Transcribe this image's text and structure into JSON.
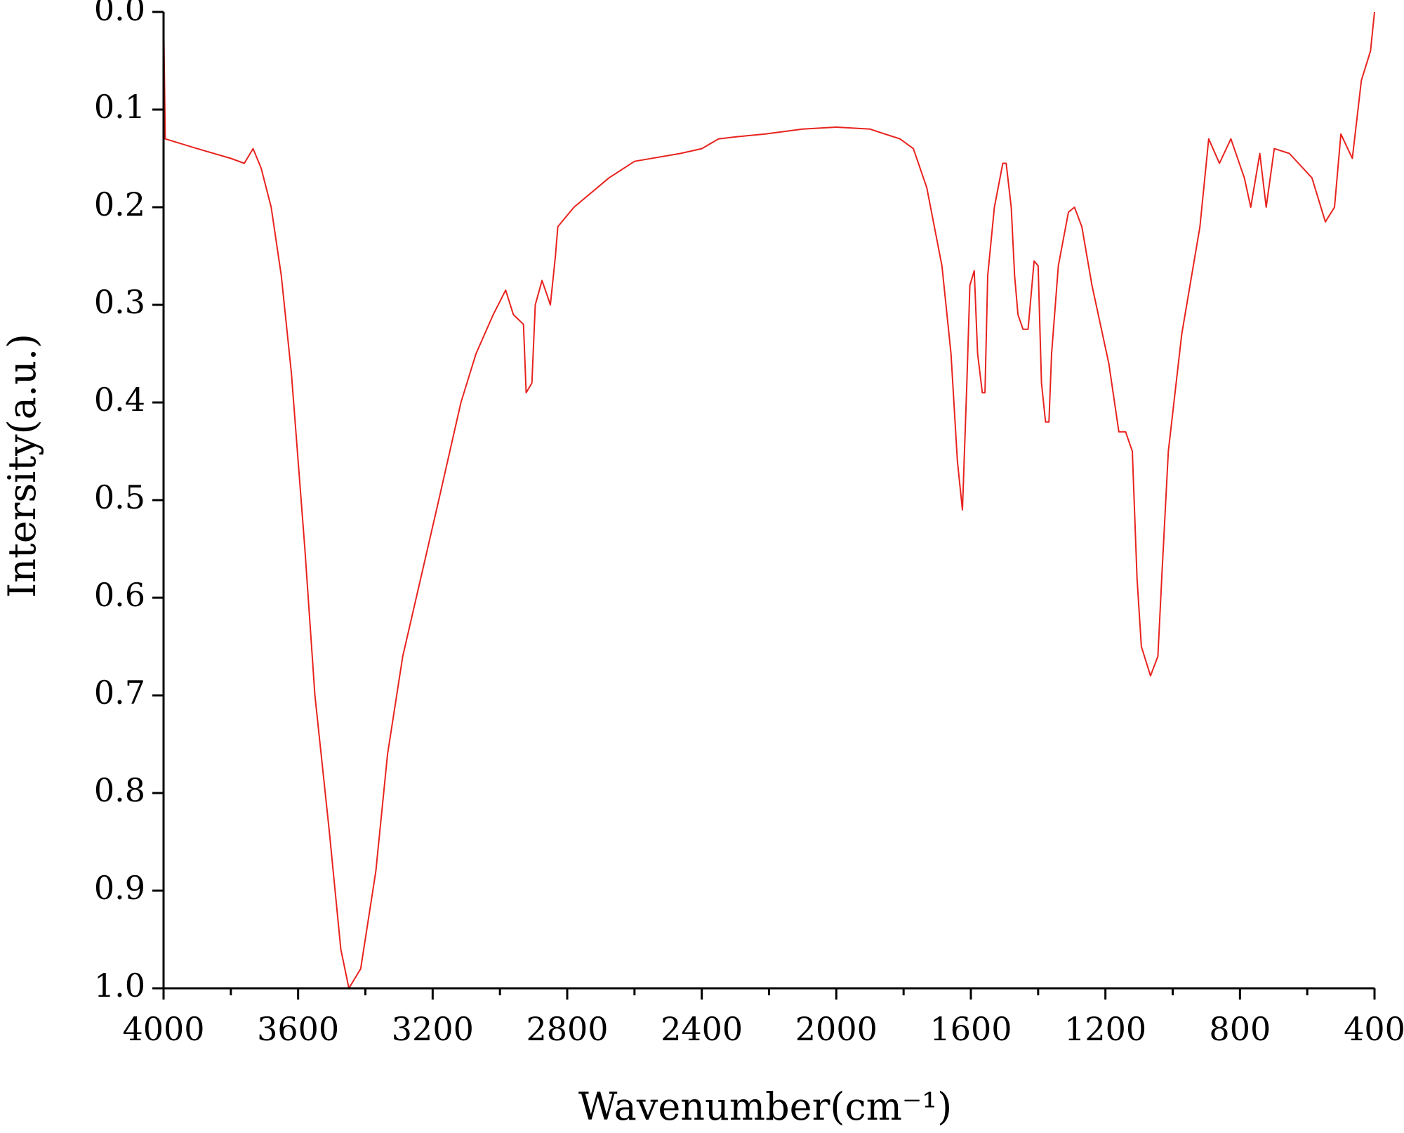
{
  "chart_data": {
    "type": "line",
    "x_label": "Wavenumber(cm⁻¹)",
    "y_label": "Intersity(a.u.)",
    "xlim": [
      4000,
      400
    ],
    "ylim": [
      1,
      0
    ],
    "xticks": [
      4000,
      3600,
      3200,
      2800,
      2400,
      2000,
      1600,
      1200,
      800,
      400
    ],
    "xticks_minor": [
      3800,
      3400,
      3000,
      2600,
      2200,
      1800,
      1400,
      1000,
      600
    ],
    "yticks": [
      {
        "value": 0,
        "label": "0.0"
      },
      0.1,
      0.2,
      0.3,
      0.4,
      0.5,
      0.6,
      0.7,
      0.8,
      0.9,
      {
        "value": 1,
        "label": "1.0"
      }
    ],
    "x": [
      4000,
      3995,
      3900,
      3800,
      3760,
      3734,
      3710,
      3680,
      3650,
      3620,
      3580,
      3550,
      3507,
      3473,
      3449,
      3414,
      3369,
      3334,
      3289,
      3182,
      3116,
      3071,
      3020,
      2983,
      2960,
      2930,
      2922,
      2905,
      2895,
      2875,
      2860,
      2850,
      2835,
      2828,
      2780,
      2676,
      2600,
      2464,
      2400,
      2350,
      2300,
      2211,
      2100,
      2000,
      1900,
      1811,
      1771,
      1731,
      1686,
      1659,
      1640,
      1625,
      1612,
      1603,
      1590,
      1580,
      1566,
      1558,
      1550,
      1530,
      1505,
      1495,
      1480,
      1470,
      1460,
      1445,
      1430,
      1412,
      1400,
      1390,
      1378,
      1368,
      1360,
      1340,
      1310,
      1292,
      1270,
      1240,
      1190,
      1160,
      1140,
      1120,
      1106,
      1093,
      1066,
      1044,
      1031,
      1013,
      973,
      919,
      893,
      861,
      827,
      787,
      768,
      741,
      722,
      698,
      653,
      586,
      546,
      519,
      500,
      466,
      439,
      412,
      400
    ],
    "series": [
      {
        "name": "spectrum",
        "color": "#e8231e",
        "values": [
          0.0,
          0.13,
          0.14,
          0.15,
          0.155,
          0.14,
          0.16,
          0.2,
          0.27,
          0.37,
          0.55,
          0.7,
          0.84,
          0.96,
          1.0,
          0.98,
          0.88,
          0.76,
          0.66,
          0.5,
          0.4,
          0.35,
          0.31,
          0.285,
          0.31,
          0.32,
          0.39,
          0.38,
          0.3,
          0.275,
          0.29,
          0.3,
          0.25,
          0.22,
          0.2,
          0.17,
          0.153,
          0.145,
          0.14,
          0.13,
          0.128,
          0.125,
          0.12,
          0.118,
          0.12,
          0.13,
          0.14,
          0.18,
          0.26,
          0.35,
          0.46,
          0.51,
          0.38,
          0.28,
          0.265,
          0.35,
          0.39,
          0.39,
          0.27,
          0.2,
          0.155,
          0.155,
          0.2,
          0.27,
          0.31,
          0.325,
          0.325,
          0.255,
          0.26,
          0.38,
          0.42,
          0.42,
          0.35,
          0.26,
          0.205,
          0.2,
          0.22,
          0.28,
          0.36,
          0.43,
          0.43,
          0.45,
          0.58,
          0.65,
          0.68,
          0.66,
          0.57,
          0.45,
          0.33,
          0.22,
          0.13,
          0.155,
          0.13,
          0.17,
          0.2,
          0.145,
          0.2,
          0.14,
          0.145,
          0.17,
          0.215,
          0.2,
          0.125,
          0.15,
          0.07,
          0.04,
          0.0
        ]
      }
    ]
  }
}
